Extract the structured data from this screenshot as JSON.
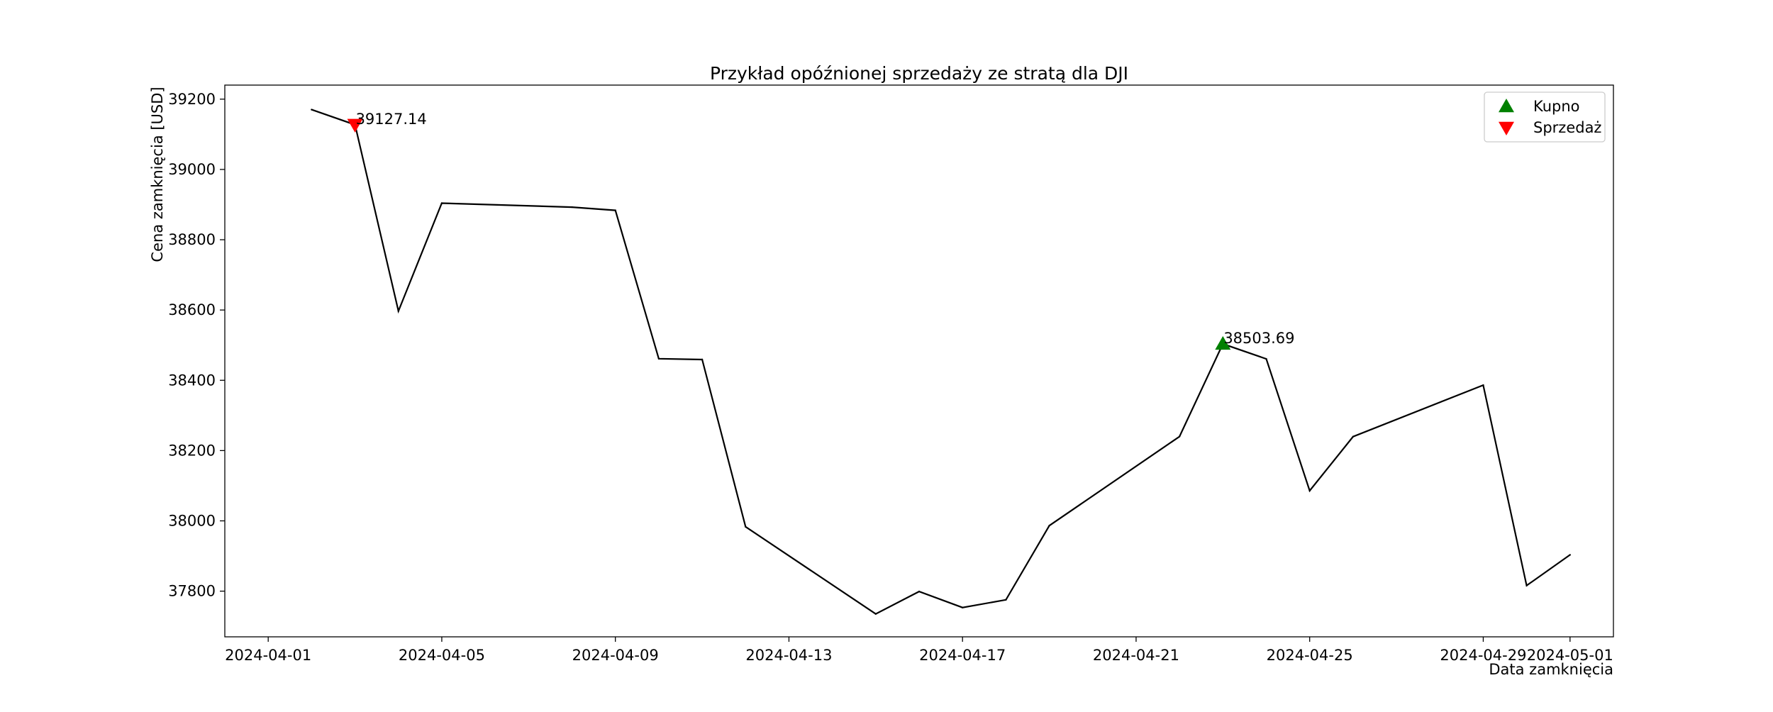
{
  "chart_data": {
    "type": "line",
    "title": "Przykład opóźnionej sprzedaży ze stratą dla DJI",
    "xlabel": "Data zamknięcia",
    "ylabel": "Cena zamknięcia [USD]",
    "xlim": [
      "2024-03-31",
      "2024-05-02"
    ],
    "ylim": [
      37670,
      39240
    ],
    "x_ticks": [
      "2024-04-01",
      "2024-04-05",
      "2024-04-09",
      "2024-04-13",
      "2024-04-17",
      "2024-04-21",
      "2024-04-25",
      "2024-04-29",
      "2024-05-01"
    ],
    "y_ticks": [
      37800,
      38000,
      38200,
      38400,
      38600,
      38800,
      39000,
      39200
    ],
    "grid": false,
    "legend_position": "top-right",
    "series": [
      {
        "color": "#000000",
        "x": [
          "2024-04-02",
          "2024-04-03",
          "2024-04-04",
          "2024-04-05",
          "2024-04-08",
          "2024-04-09",
          "2024-04-10",
          "2024-04-11",
          "2024-04-12",
          "2024-04-15",
          "2024-04-16",
          "2024-04-17",
          "2024-04-18",
          "2024-04-19",
          "2024-04-22",
          "2024-04-23",
          "2024-04-24",
          "2024-04-25",
          "2024-04-26",
          "2024-04-29",
          "2024-04-30",
          "2024-05-01"
        ],
        "values": [
          39170.24,
          39127.14,
          38596.98,
          38904.04,
          38892.8,
          38883.67,
          38461.51,
          38459.08,
          37983.24,
          37735.11,
          37798.97,
          37753.31,
          37775.38,
          37986.4,
          38239.98,
          38503.69,
          38460.92,
          38085.8,
          38239.66,
          38386.09,
          37815.92,
          37903.29
        ]
      }
    ],
    "markers": [
      {
        "name": "Kupno",
        "shape": "triangle-up",
        "color": "#008000",
        "x": "2024-04-23",
        "y": 38503.69,
        "label": "38503.69"
      },
      {
        "name": "Sprzedaż",
        "shape": "triangle-down",
        "color": "#ff0000",
        "x": "2024-04-03",
        "y": 39127.14,
        "label": "39127.14"
      }
    ],
    "legend": [
      "Kupno",
      "Sprzedaż"
    ]
  }
}
